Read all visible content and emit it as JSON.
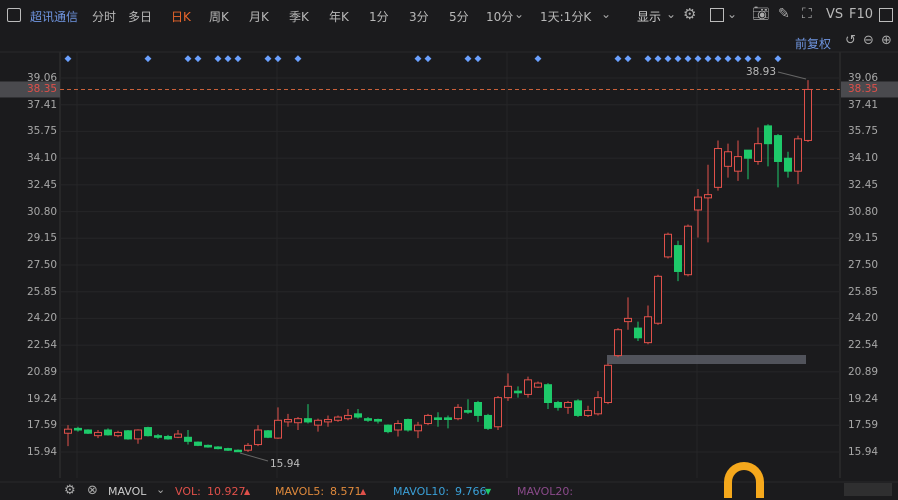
{
  "toolbar": {
    "stock_name": "超讯通信",
    "periods": [
      "分时",
      "多日",
      "日K",
      "周K",
      "月K",
      "季K",
      "年K",
      "1分",
      "3分",
      "5分",
      "10分"
    ],
    "active_period": "日K",
    "range_select": "1天:1分K",
    "display_label": "显示",
    "vs_label": "VS",
    "f10_label": "F10",
    "adjust_label": "前复权"
  },
  "colors": {
    "up": "#e0504a",
    "down": "#1ec96a",
    "accent": "#e8652b",
    "stock_name": "#6f95e0",
    "marker": "#6aa0ff",
    "mavol5": "#e08a3c",
    "mavol10": "#3aa0d8",
    "mavol20": "#8a4a8a",
    "vol": "#e0504a"
  },
  "price_axis": {
    "labels": [
      "39.06",
      "37.41",
      "35.75",
      "34.10",
      "32.45",
      "30.80",
      "29.15",
      "27.50",
      "25.85",
      "24.20",
      "22.54",
      "20.89",
      "19.24",
      "17.59",
      "15.94"
    ],
    "current_price": "38.35"
  },
  "chart_data": {
    "type": "candlestick",
    "ylim": [
      15.94,
      39.06
    ],
    "ohlc": [
      [
        17.1,
        17.6,
        16.3,
        17.35
      ],
      [
        17.4,
        17.5,
        17.2,
        17.3
      ],
      [
        17.3,
        17.35,
        17.05,
        17.1
      ],
      [
        16.95,
        17.3,
        16.8,
        17.15
      ],
      [
        17.3,
        17.4,
        16.95,
        17.0
      ],
      [
        16.95,
        17.25,
        16.85,
        17.15
      ],
      [
        17.25,
        17.3,
        16.7,
        16.75
      ],
      [
        16.75,
        17.35,
        16.45,
        17.3
      ],
      [
        17.45,
        17.5,
        16.9,
        16.95
      ],
      [
        16.95,
        17.05,
        16.75,
        16.85
      ],
      [
        16.9,
        17.0,
        16.7,
        16.75
      ],
      [
        16.85,
        17.3,
        16.8,
        17.05
      ],
      [
        16.85,
        17.3,
        16.4,
        16.6
      ],
      [
        16.55,
        16.6,
        16.3,
        16.35
      ],
      [
        16.35,
        16.4,
        16.2,
        16.25
      ],
      [
        16.25,
        16.3,
        16.1,
        16.15
      ],
      [
        16.15,
        16.2,
        16.0,
        16.05
      ],
      [
        16.05,
        16.1,
        15.94,
        15.98
      ],
      [
        16.05,
        16.5,
        15.94,
        16.35
      ],
      [
        16.4,
        17.6,
        16.3,
        17.3
      ],
      [
        17.25,
        17.3,
        16.8,
        16.85
      ],
      [
        16.8,
        18.7,
        16.75,
        17.9
      ],
      [
        17.8,
        18.3,
        17.5,
        17.95
      ],
      [
        17.75,
        18.1,
        17.3,
        18.0
      ],
      [
        18.0,
        18.9,
        17.7,
        17.8
      ],
      [
        17.6,
        18.0,
        17.2,
        17.9
      ],
      [
        17.8,
        18.2,
        17.5,
        17.95
      ],
      [
        17.9,
        18.2,
        17.8,
        18.1
      ],
      [
        18.0,
        18.6,
        17.9,
        18.2
      ],
      [
        18.3,
        18.6,
        18.0,
        18.1
      ],
      [
        18.0,
        18.1,
        17.8,
        17.9
      ],
      [
        17.95,
        18.0,
        17.7,
        17.85
      ],
      [
        17.6,
        17.65,
        17.1,
        17.2
      ],
      [
        17.3,
        17.9,
        16.9,
        17.7
      ],
      [
        17.95,
        18.0,
        17.2,
        17.3
      ],
      [
        17.25,
        17.8,
        16.8,
        17.6
      ],
      [
        17.7,
        18.3,
        17.6,
        18.2
      ],
      [
        18.05,
        18.4,
        17.5,
        17.95
      ],
      [
        18.05,
        18.2,
        17.4,
        17.95
      ],
      [
        18.0,
        18.9,
        17.9,
        18.7
      ],
      [
        18.5,
        19.2,
        18.3,
        18.4
      ],
      [
        19.0,
        19.1,
        17.8,
        18.2
      ],
      [
        18.2,
        18.3,
        17.3,
        17.4
      ],
      [
        17.5,
        19.4,
        17.3,
        19.3
      ],
      [
        19.3,
        20.8,
        19.1,
        20.0
      ],
      [
        19.7,
        20.0,
        19.3,
        19.6
      ],
      [
        19.5,
        20.6,
        19.3,
        20.4
      ],
      [
        19.95,
        20.3,
        19.9,
        20.2
      ],
      [
        20.1,
        20.2,
        18.6,
        19.0
      ],
      [
        19.0,
        19.1,
        18.5,
        18.7
      ],
      [
        18.7,
        19.1,
        18.3,
        19.0
      ],
      [
        19.1,
        19.2,
        18.1,
        18.2
      ],
      [
        18.2,
        18.8,
        18.1,
        18.5
      ],
      [
        18.3,
        19.7,
        18.2,
        19.3
      ],
      [
        19.0,
        21.4,
        18.9,
        21.3
      ],
      [
        21.9,
        23.6,
        21.8,
        23.5
      ],
      [
        24.0,
        25.5,
        23.5,
        24.2
      ],
      [
        23.6,
        24.0,
        22.8,
        23.0
      ],
      [
        22.7,
        25.0,
        22.6,
        24.3
      ],
      [
        23.9,
        26.9,
        23.8,
        26.8
      ],
      [
        28.0,
        29.5,
        27.9,
        29.4
      ],
      [
        28.7,
        29.0,
        26.5,
        27.1
      ],
      [
        26.9,
        30.0,
        26.8,
        29.9
      ],
      [
        30.9,
        32.2,
        29.2,
        31.7
      ],
      [
        31.65,
        33.7,
        28.9,
        31.85
      ],
      [
        32.3,
        35.2,
        32.1,
        34.7
      ],
      [
        33.6,
        35.0,
        32.9,
        34.5
      ],
      [
        33.3,
        35.2,
        32.7,
        34.2
      ],
      [
        34.6,
        34.6,
        32.8,
        34.1
      ],
      [
        33.9,
        36.0,
        33.7,
        35.0
      ],
      [
        36.1,
        36.2,
        33.6,
        35.0
      ],
      [
        35.5,
        35.6,
        32.3,
        33.9
      ],
      [
        34.1,
        34.5,
        32.9,
        33.3
      ],
      [
        33.3,
        35.5,
        32.5,
        35.3
      ],
      [
        35.2,
        38.93,
        35.1,
        38.35
      ]
    ],
    "event_marker_indices": [
      0,
      8,
      12,
      13,
      15,
      16,
      17,
      20,
      21,
      23,
      35,
      36,
      40,
      41,
      47,
      55,
      56,
      58,
      59,
      60,
      61,
      62,
      63,
      64,
      65,
      66,
      67,
      68,
      69,
      71
    ],
    "annotations": {
      "high_label": "38.93",
      "low_label": "15.94"
    }
  },
  "volume_bar": {
    "indicator": "MAVOL",
    "vol_label": "VOL:",
    "vol_value": "10.927",
    "mavol5_label": "MAVOL5:",
    "mavol5_value": "8.571",
    "mavol10_label": "MAVOL10:",
    "mavol10_value": "9.766",
    "mavol20_label": "MAVOL20:"
  }
}
